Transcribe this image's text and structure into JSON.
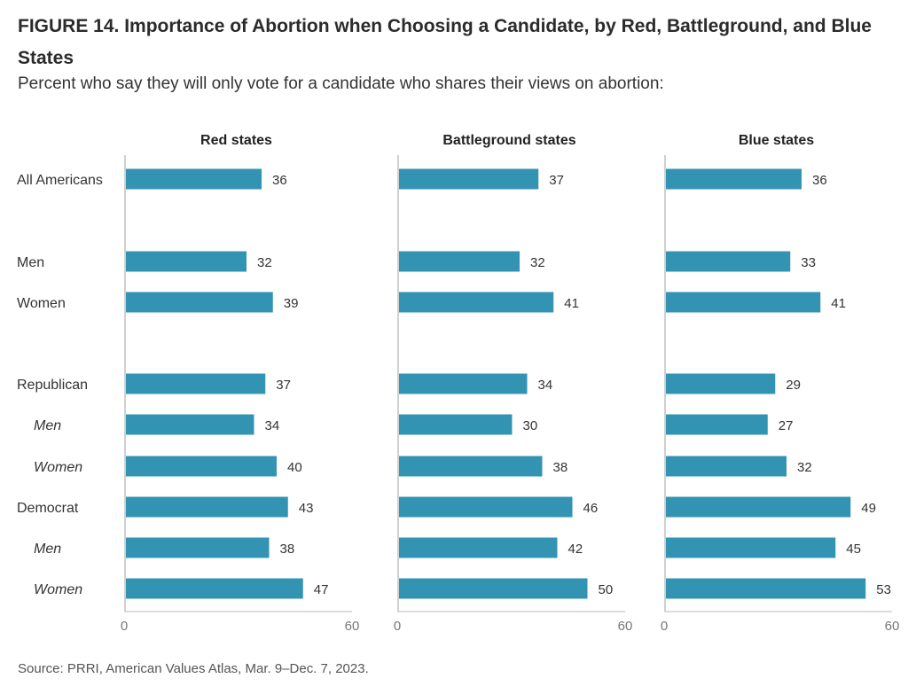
{
  "title": "FIGURE 14. Importance of Abortion when Choosing a Candidate, by Red, Battleground, and Blue States",
  "subtitle": "Percent who say they will only vote for a candidate who shares their views on abortion:",
  "source": "Source: PRRI, American Values Atlas, Mar. 9–Dec. 7, 2023.",
  "colors": {
    "bar": "#3393b3",
    "axis": "#d0d0d0",
    "text": "#333333",
    "tick": "#777777"
  },
  "chart_data": {
    "type": "bar",
    "orientation": "horizontal",
    "categories": [
      "All Americans",
      "Men",
      "Women",
      "Republican",
      "Men",
      "Women",
      "Democrat",
      "Men",
      "Women"
    ],
    "category_style": [
      "normal",
      "normal",
      "normal",
      "normal",
      "italic",
      "italic",
      "normal",
      "italic",
      "italic"
    ],
    "xlim": [
      0,
      60
    ],
    "x_ticks": [
      "0",
      "60"
    ],
    "panels": [
      {
        "name": "Red states",
        "values": [
          36,
          32,
          39,
          37,
          34,
          40,
          43,
          38,
          47
        ]
      },
      {
        "name": "Battleground states",
        "values": [
          37,
          32,
          41,
          34,
          30,
          38,
          46,
          42,
          50
        ]
      },
      {
        "name": "Blue states",
        "values": [
          36,
          33,
          41,
          29,
          27,
          32,
          49,
          45,
          53
        ]
      }
    ]
  }
}
